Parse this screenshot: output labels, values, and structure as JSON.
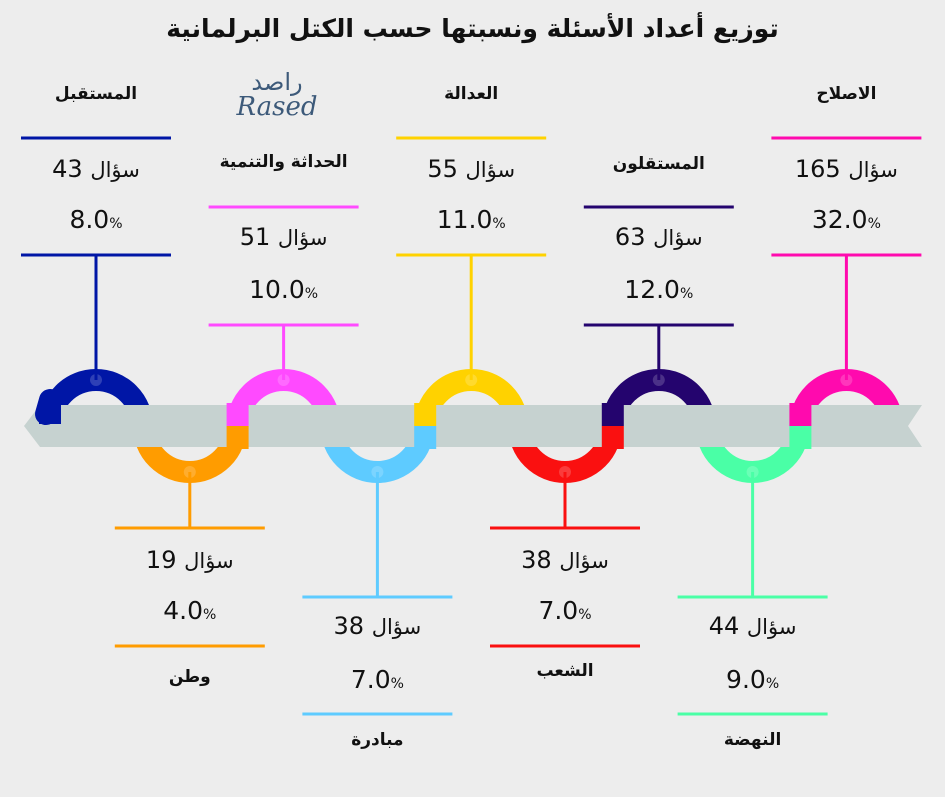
{
  "chart_data": {
    "type": "infographic-timeline",
    "title": "توزيع أعداد الأسئلة ونسبتها حسب الكتل البرلمانية",
    "logo": {
      "arabic": "راصد",
      "latin": "Rased"
    },
    "unit_label": "سؤال",
    "percent_sign": "%",
    "items": [
      {
        "name": "المستقبل",
        "count": 43,
        "percent": "8.0",
        "color": "#0016a6"
      },
      {
        "name": "وطن",
        "count": 19,
        "percent": "4.0",
        "color": "#ff9c00"
      },
      {
        "name": "الحداثة والتنمية",
        "count": 51,
        "percent": "10.0",
        "color": "#ff4aff"
      },
      {
        "name": "مبادرة",
        "count": 38,
        "percent": "7.0",
        "color": "#5ecbff"
      },
      {
        "name": "العدالة",
        "count": 55,
        "percent": "11.0",
        "color": "#ffd200"
      },
      {
        "name": "الشعب",
        "count": 38,
        "percent": "7.0",
        "color": "#fa1010"
      },
      {
        "name": "المستقلون",
        "count": 63,
        "percent": "12.0",
        "color": "#24046e"
      },
      {
        "name": "النهضة",
        "count": 44,
        "percent": "9.0",
        "color": "#4affa6"
      },
      {
        "name": "الاصلاح",
        "count": 165,
        "percent": "32.0",
        "color": "#ff0aae"
      }
    ],
    "ribbon_color": "#c6d2d0"
  }
}
